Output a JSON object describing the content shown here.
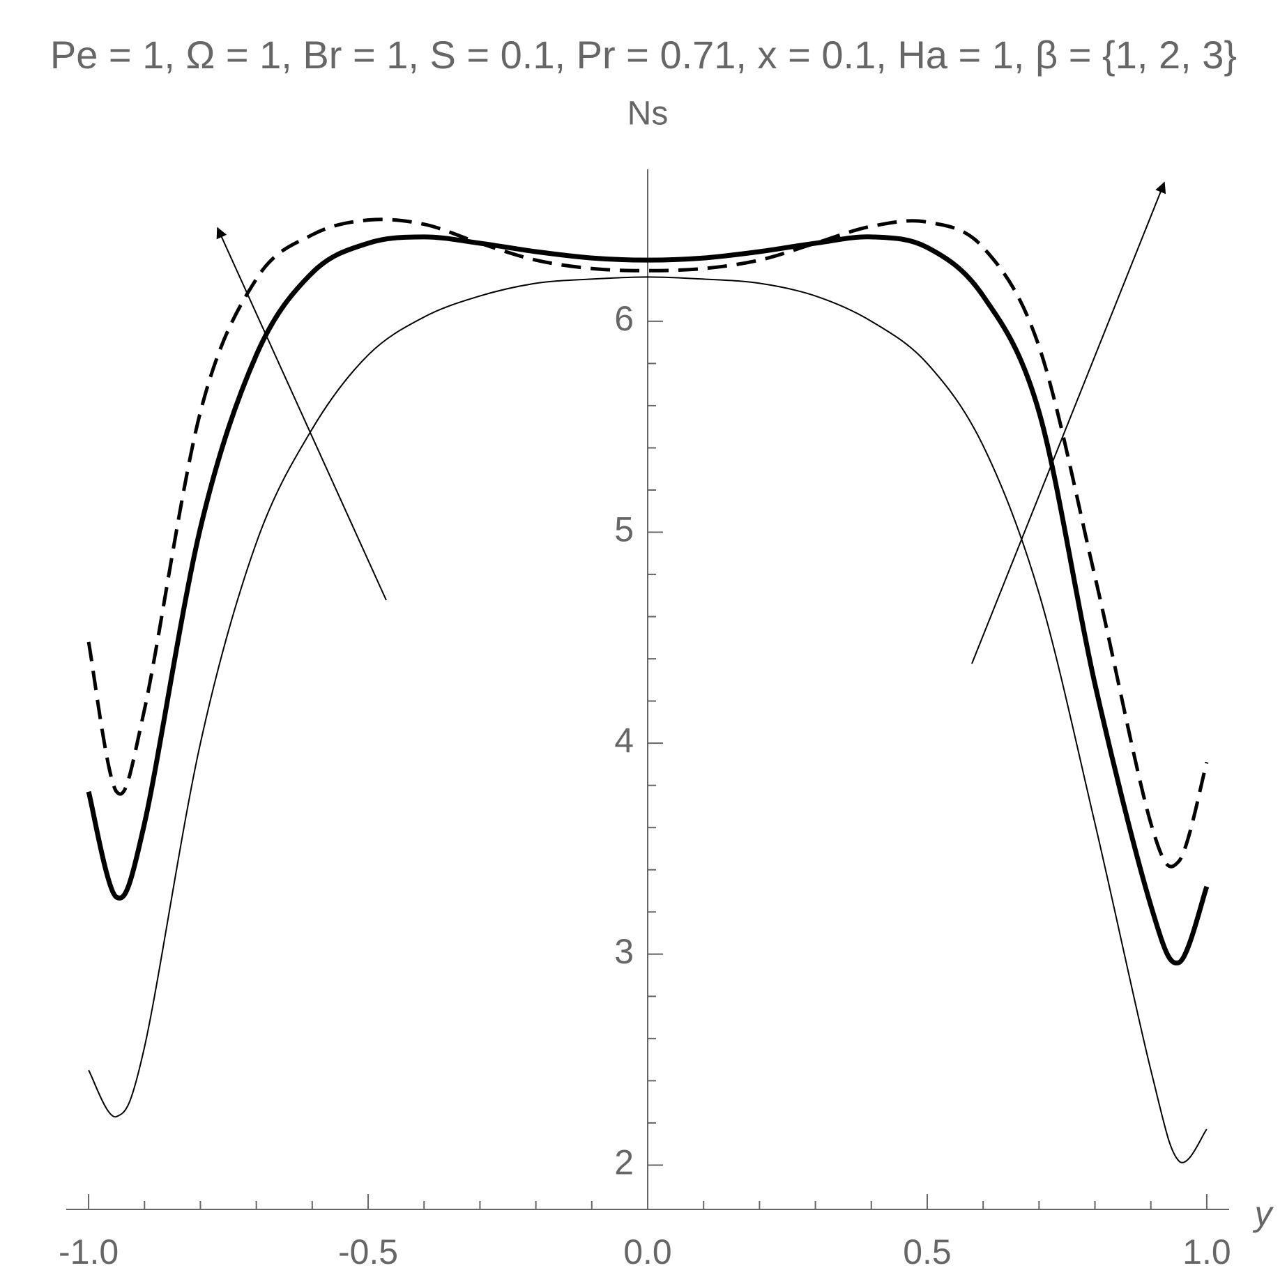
{
  "chart_data": {
    "type": "line",
    "title": "Pe = 1, Ω = 1, Br = 1, S = 0.1, Pr = 0.71, x = 0.1, Ha = 1, β = {1, 2, 3}",
    "x_label": "y",
    "y_label": "Ns",
    "x": [
      -1,
      -0.95,
      -0.9,
      -0.8,
      -0.7,
      -0.6,
      -0.5,
      -0.4,
      -0.3,
      -0.2,
      -0.1,
      0,
      0.1,
      0.2,
      0.3,
      0.4,
      0.5,
      0.6,
      0.7,
      0.8,
      0.9,
      0.95,
      1
    ],
    "series": [
      {
        "color": "#000000",
        "style": "thin",
        "values": [
          2.45,
          2.23,
          2.56,
          4.0,
          4.95,
          5.49,
          5.84,
          6.02,
          6.12,
          6.18,
          6.2,
          6.21,
          6.2,
          6.18,
          6.12,
          6.0,
          5.8,
          5.41,
          4.71,
          3.62,
          2.45,
          2.02,
          2.17
        ]
      },
      {
        "color": "#000000",
        "style": "thick",
        "values": [
          3.77,
          3.27,
          3.62,
          5.02,
          5.84,
          6.23,
          6.37,
          6.4,
          6.37,
          6.33,
          6.3,
          6.29,
          6.3,
          6.33,
          6.37,
          6.4,
          6.35,
          6.12,
          5.57,
          4.28,
          3.23,
          2.96,
          3.32
        ]
      },
      {
        "color": "#000000",
        "style": "dashed",
        "values": [
          4.48,
          3.77,
          4.16,
          5.57,
          6.2,
          6.41,
          6.48,
          6.46,
          6.37,
          6.29,
          6.25,
          6.24,
          6.25,
          6.29,
          6.37,
          6.45,
          6.47,
          6.35,
          5.88,
          4.79,
          3.62,
          3.44,
          3.91
        ]
      }
    ],
    "xlim": [
      -1.04,
      1.04
    ],
    "ylim": [
      1.79,
      6.72
    ],
    "xticks": [
      {
        "value": -1,
        "label": "-1.0"
      },
      {
        "value": -0.5,
        "label": "-0.5"
      },
      {
        "value": 0,
        "label": "0.0"
      },
      0.5,
      {
        "value": 1,
        "label": "1.0"
      }
    ],
    "yticks": [
      2,
      3,
      4,
      5,
      6
    ]
  }
}
